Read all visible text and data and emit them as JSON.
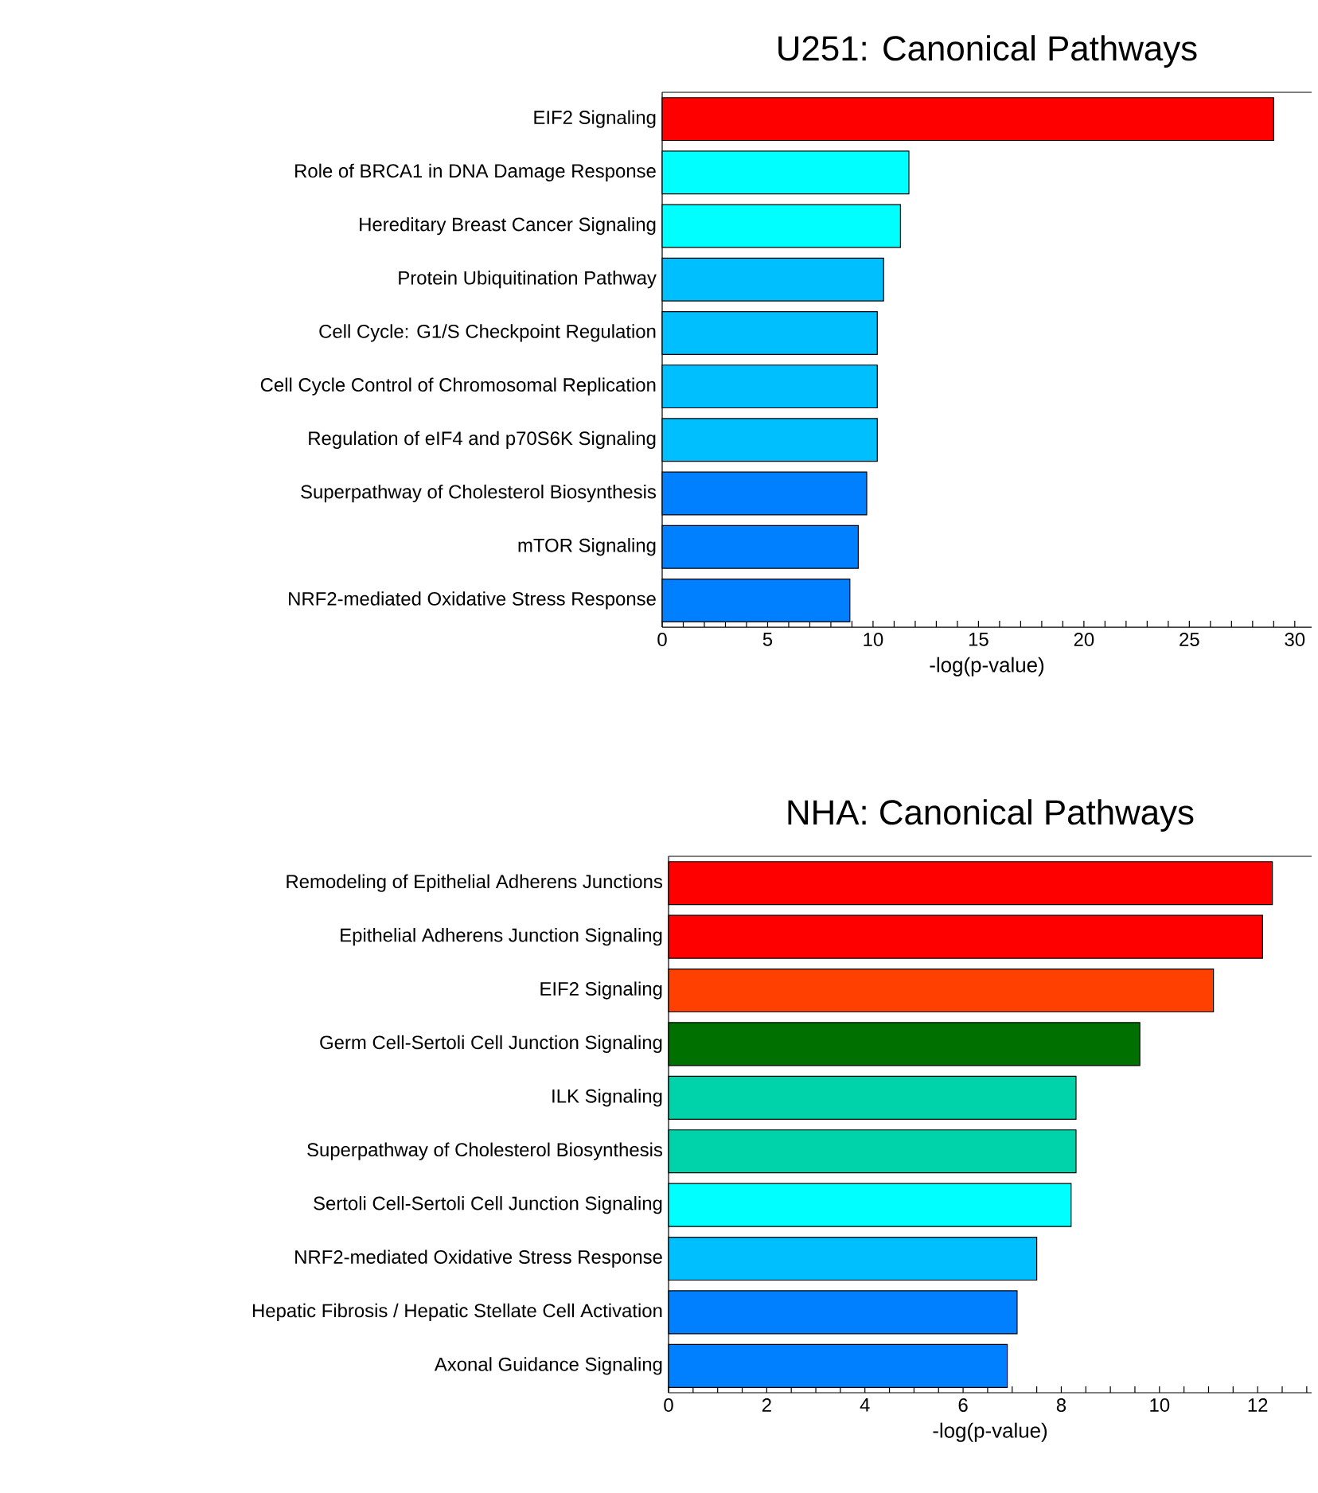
{
  "chart_data": [
    {
      "type": "bar",
      "orientation": "horizontal",
      "title": "U251: Canonical Pathways",
      "xlabel": "-log(p-value)",
      "categories": [
        "EIF2 Signaling",
        "Role of BRCA1 in DNA Damage Response",
        "Hereditary Breast Cancer Signaling",
        "Protein Ubiquitination Pathway",
        "Cell Cycle: G1/S Checkpoint Regulation",
        "Cell Cycle Control of Chromosomal Replication",
        "Regulation of eIF4 and p70S6K Signaling",
        "Superpathway of Cholesterol Biosynthesis",
        "mTOR Signaling",
        "NRF2-mediated Oxidative Stress Response"
      ],
      "values": [
        29.0,
        11.7,
        11.3,
        10.5,
        10.2,
        10.2,
        10.2,
        9.7,
        9.3,
        8.9
      ],
      "colors": [
        "#ff0000",
        "#00ffff",
        "#00ffff",
        "#00bfff",
        "#00bfff",
        "#00bfff",
        "#00bfff",
        "#0080ff",
        "#0080ff",
        "#0080ff"
      ],
      "xlim": [
        0,
        30.8
      ],
      "xticks": [
        0,
        {
          "value": 1,
          "label": null
        },
        {
          "value": 2,
          "label": null
        },
        {
          "value": 3,
          "label": null
        },
        {
          "value": 4,
          "label": null
        },
        5,
        {
          "value": 6,
          "label": null
        },
        {
          "value": 7,
          "label": null
        },
        {
          "value": 8,
          "label": null
        },
        {
          "value": 9,
          "label": null
        },
        10,
        {
          "value": 11,
          "label": null
        },
        {
          "value": 12,
          "label": null
        },
        {
          "value": 13,
          "label": null
        },
        {
          "value": 14,
          "label": null
        },
        15,
        {
          "value": 16,
          "label": null
        },
        {
          "value": 17,
          "label": null
        },
        {
          "value": 18,
          "label": null
        },
        {
          "value": 19,
          "label": null
        },
        20,
        {
          "value": 21,
          "label": null
        },
        {
          "value": 22,
          "label": null
        },
        {
          "value": 23,
          "label": null
        },
        {
          "value": 24,
          "label": null
        },
        25,
        {
          "value": 26,
          "label": null
        },
        {
          "value": 27,
          "label": null
        },
        {
          "value": 28,
          "label": null
        },
        {
          "value": 29,
          "label": null
        },
        30
      ]
    },
    {
      "type": "bar",
      "orientation": "horizontal",
      "title": "NHA: Canonical Pathways",
      "xlabel": "-log(p-value)",
      "categories": [
        "Remodeling of Epithelial Adherens Junctions",
        "Epithelial Adherens Junction Signaling",
        "EIF2 Signaling",
        "Germ Cell-Sertoli Cell Junction Signaling",
        "ILK Signaling",
        "Superpathway of Cholesterol Biosynthesis",
        "Sertoli Cell-Sertoli Cell Junction Signaling",
        "NRF2-mediated Oxidative Stress Response",
        "Hepatic Fibrosis / Hepatic Stellate Cell Activation",
        "Axonal Guidance Signaling"
      ],
      "values": [
        12.3,
        12.1,
        11.1,
        9.6,
        8.3,
        8.3,
        8.2,
        7.5,
        7.1,
        6.9
      ],
      "colors": [
        "#ff0000",
        "#ff0000",
        "#ff4000",
        "#007000",
        "#00d2aa",
        "#00d2aa",
        "#00ffff",
        "#00bfff",
        "#0080ff",
        "#0080ff"
      ],
      "xlim": [
        0,
        13.1
      ],
      "xticks": [
        0,
        {
          "value": 0.5,
          "label": null
        },
        {
          "value": 1,
          "label": null
        },
        {
          "value": 1.5,
          "label": null
        },
        2,
        {
          "value": 2.5,
          "label": null
        },
        {
          "value": 3,
          "label": null
        },
        {
          "value": 3.5,
          "label": null
        },
        4,
        {
          "value": 4.5,
          "label": null
        },
        {
          "value": 5,
          "label": null
        },
        {
          "value": 5.5,
          "label": null
        },
        6,
        {
          "value": 6.5,
          "label": null
        },
        {
          "value": 7,
          "label": null
        },
        {
          "value": 7.5,
          "label": null
        },
        8,
        {
          "value": 8.5,
          "label": null
        },
        {
          "value": 9,
          "label": null
        },
        {
          "value": 9.5,
          "label": null
        },
        10,
        {
          "value": 10.5,
          "label": null
        },
        {
          "value": 11,
          "label": null
        },
        {
          "value": 11.5,
          "label": null
        },
        12,
        {
          "value": 12.5,
          "label": null
        },
        {
          "value": 13,
          "label": null
        }
      ]
    }
  ]
}
